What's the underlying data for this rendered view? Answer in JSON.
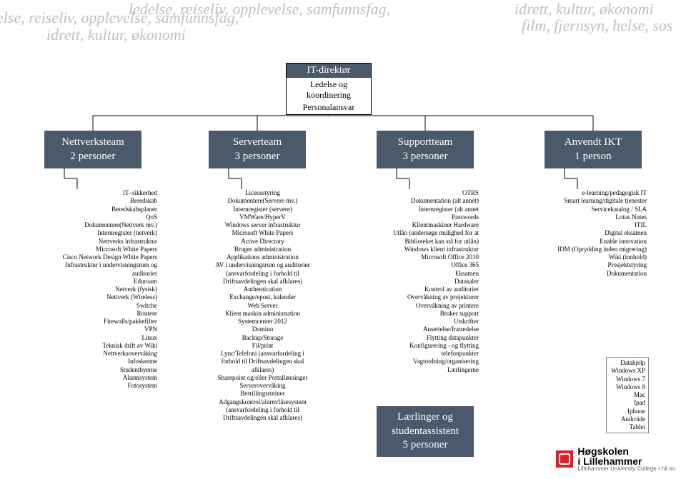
{
  "colors": {
    "team_bg": "#4a5a6a",
    "bg_text": "#c0c0c0",
    "line": "#000000"
  },
  "fonts": {
    "body_size": 9,
    "team_size": 15,
    "bg_size": 22
  },
  "bg": {
    "l1": "else, reiseliv, opplevelse, samfunnsfag,",
    "l2": "idrett, kultur, økonomi",
    "l3": "ledelse, reiseliv, opplevelse, samfunnsfag,",
    "r1": "idrett, kultur, økonomi",
    "r2": "film, fjernsyn, helse, sos"
  },
  "director": {
    "title": "IT-direktør",
    "sub1": "Ledelse og koordinering",
    "sub2": "Personalansvar"
  },
  "teams": {
    "net": {
      "name": "Nettverksteam",
      "count": "2 personer"
    },
    "server": {
      "name": "Serverteam",
      "count": "3 personer"
    },
    "support": {
      "name": "Supportteam",
      "count": "3 personer"
    },
    "ikt": {
      "name": "Anvendt IKT",
      "count": "1 person"
    }
  },
  "learner": {
    "line1": "Lærlinger og",
    "line2": "studentassistent",
    "count": "5 personer"
  },
  "cols": {
    "net": [
      "IT–sikkerhed",
      "Beredskab",
      "Beredskabsplaner",
      "QoS",
      "Dokumentere(Nettverk mv.)",
      "Internregister (netverk)",
      "Nettverks infrastruktur",
      "Microsoft White Papers",
      "Cisco Network Design White Papers",
      "Infrastruktur i undervisningsrum og",
      "auditorier",
      "Eduroam",
      "Netverk (fysisk)",
      "Nettverk (Wireless)",
      "Switche",
      "Routere",
      "Firewalls/pakkefilter",
      "VPN",
      "Linux",
      "Teknisk drift av Wiki",
      "Nettverksovervåking",
      "Infoskerme",
      "Studentbyerne",
      "Alarmsystem",
      "Fotosystem"
    ],
    "server": [
      "Licensstyring",
      "Dokumentere(Servere mv.)",
      "Internregister (servere)",
      "VMWare/HyperV",
      "Windows server infrastruktur",
      "Microsoft White Papers",
      "Active Directory",
      "Bruger administration",
      "Applikations administration",
      "AV i undervisningsrum og auditorier",
      "(ansvarfordeling i forhold til",
      "Driftsavdelingen skal afklares)",
      "Authentication",
      "Exchange/epost, kalender",
      "Web Server",
      "Klient maskin administration",
      "Systemcenter 2012",
      "Domino",
      "Backup/Storage",
      "Fil/print",
      "Lync/Telefoni (ansvarfordeling i",
      "forhold til Driftsavdelingen skal",
      "afklares)",
      "Sharepoint og/eller Portalløsninger",
      "Serverovervåking",
      "Bestillingsrutiner",
      "Adgangskontrol/alarm/låsesystem",
      "(ansvarfordeling i forhold til",
      "Driftsavdelingen skal afklares)"
    ],
    "support": [
      "OTRS",
      "Dokumentation (alt annet)",
      "Internregister (alt annet",
      "Passwords",
      "Klientmaskiner Hardware",
      "Utlån (undersøge mulighed for at",
      "Biblioteket kan stå for utlån)",
      "Windows klient infrastruktur",
      "Microsoft Office 2010",
      "Office 365",
      "Eksamen",
      "Datasaler",
      "Kontrol av auditorier",
      "Overvåkning av projektorer",
      "Overvåkning av printere",
      "Bruker support",
      "Utskrifter",
      "Ansettelse/fratredelse",
      "Flytting datapunkter",
      "Konfigurering - og flytting",
      "telefonpunkter",
      "Vagtordning/organisering",
      "Lærlingerne"
    ],
    "ikt": [
      "e-learning/pedagogisk IT",
      "Smart learning/digitale tjenester",
      "Servicekatalog / SLA",
      "Lotus Notes",
      "ITIL",
      "Digital eksamen",
      "Enable innovation",
      "IDM (Oprydding inden migrering)",
      "Wiki (innhold)",
      "Prosjektstyring",
      "Dokumentation"
    ]
  },
  "devices": [
    "Datahjelp",
    "Windows XP",
    "Windows 7",
    "Windows 8",
    "Mac",
    "Ipad",
    "Iphone",
    "Androide",
    "Tablet"
  ],
  "logo": {
    "line1": "Høgskolen",
    "line2": "i Lillehammer",
    "sub": "Lillehammer University College • hil.no"
  }
}
